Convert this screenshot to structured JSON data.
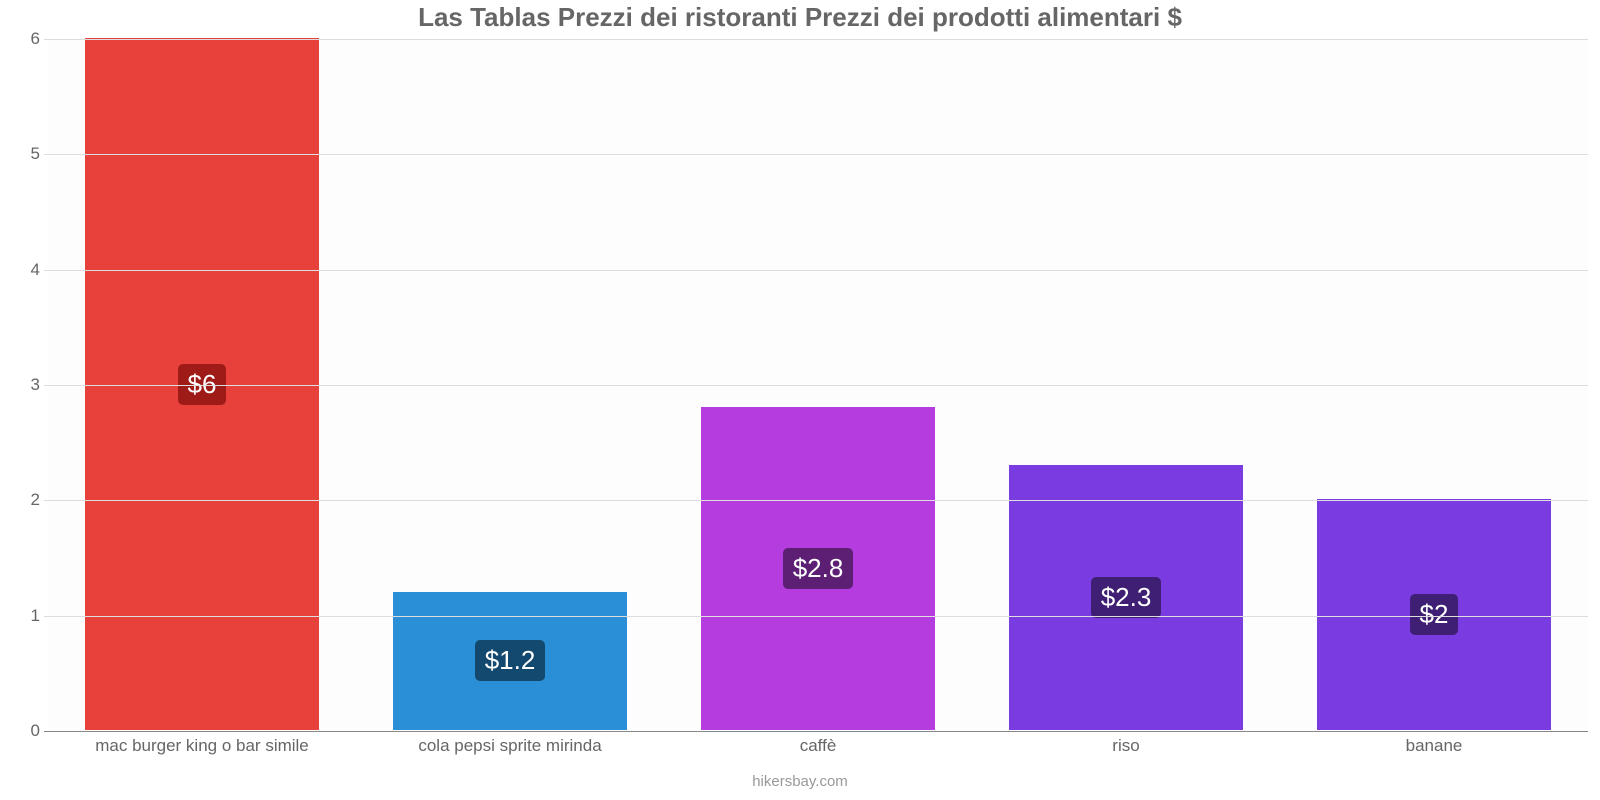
{
  "chart": {
    "type": "bar",
    "title": "Las Tablas Prezzi dei ristoranti Prezzi dei prodotti alimentari $",
    "title_fontsize": 26,
    "title_color": "#666666",
    "background_color": "#fdfdfd",
    "grid_color": "#dddddd",
    "axis_color": "#888888",
    "label_color": "#666666",
    "label_fontsize": 17,
    "value_label_fontsize": 26,
    "value_label_text_color": "#ffffff",
    "bar_width": 0.76,
    "ylim": [
      0,
      6
    ],
    "ytick_step": 1,
    "yticks": [
      {
        "v": 0,
        "label": "0"
      },
      {
        "v": 1,
        "label": "1"
      },
      {
        "v": 2,
        "label": "2"
      },
      {
        "v": 3,
        "label": "3"
      },
      {
        "v": 4,
        "label": "4"
      },
      {
        "v": 5,
        "label": "5"
      },
      {
        "v": 6,
        "label": "6"
      }
    ],
    "series": [
      {
        "category": "mac burger king o bar simile",
        "value": 6.0,
        "display": "$6",
        "bar_color": "#e8403a",
        "badge_color": "#9f1b17"
      },
      {
        "category": "cola pepsi sprite mirinda",
        "value": 1.2,
        "display": "$1.2",
        "bar_color": "#2a8fd6",
        "badge_color": "#13496e"
      },
      {
        "category": "caffè",
        "value": 2.8,
        "display": "$2.8",
        "bar_color": "#b53de0",
        "badge_color": "#5c1f73"
      },
      {
        "category": "riso",
        "value": 2.3,
        "display": "$2.3",
        "bar_color": "#7a3be0",
        "badge_color": "#3e1f73"
      },
      {
        "category": "banane",
        "value": 2.0,
        "display": "$2",
        "bar_color": "#7a3be0",
        "badge_color": "#3e1f73"
      }
    ],
    "attribution": "hikersbay.com"
  }
}
